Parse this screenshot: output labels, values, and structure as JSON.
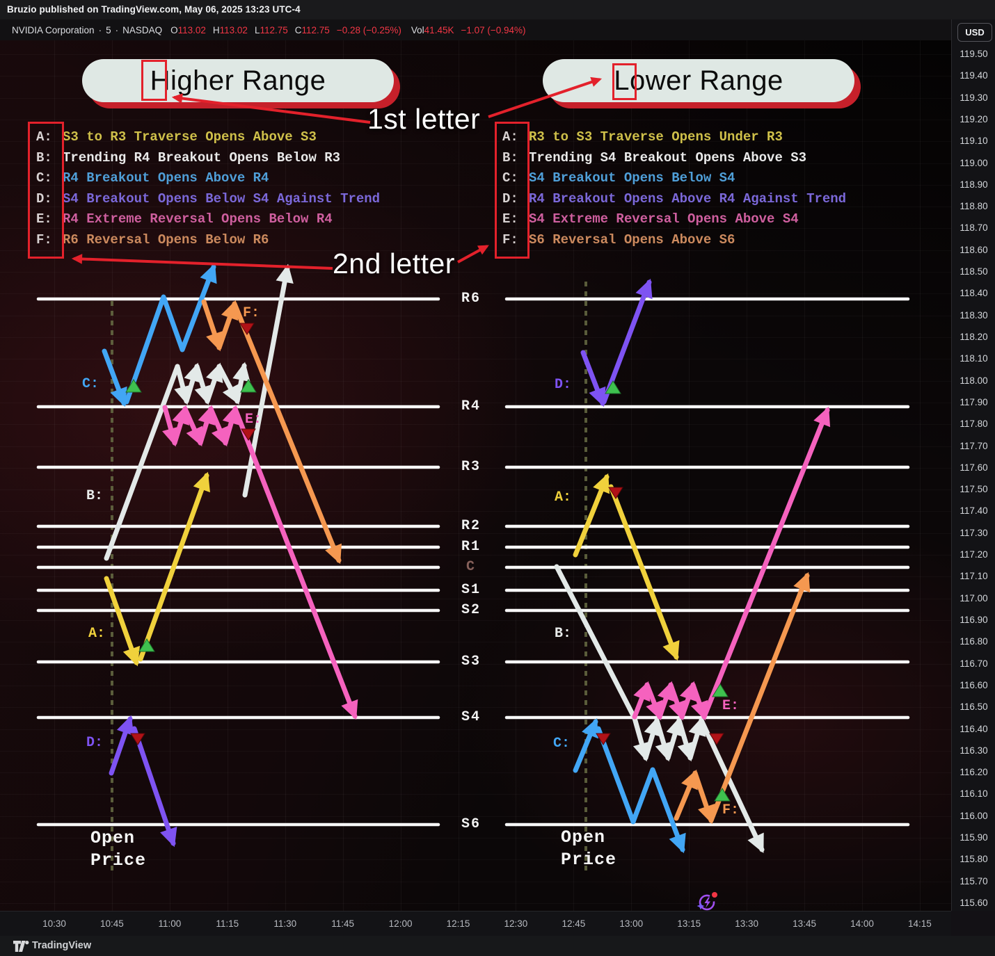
{
  "topbar": {
    "publish_text": "Bruzio published on TradingView.com, May 06, 2025 13:23 UTC-4"
  },
  "header": {
    "title": "NVIDIA Corporation",
    "separator": "·",
    "interval": "5",
    "exchange": "NASDAQ",
    "ohlc": [
      {
        "label": "O",
        "value": "113.02"
      },
      {
        "label": "H",
        "value": "113.02"
      },
      {
        "label": "L",
        "value": "112.75"
      },
      {
        "label": "C",
        "value": "112.75"
      }
    ],
    "change": "−0.28 (−0.25%)",
    "volume_label": "Vol",
    "volume_value": "41.45K",
    "volume_change": "−1.07 (−0.94%)",
    "currency_button": "USD"
  },
  "buttons": {
    "higher_range": "Higher Range",
    "lower_range": "Lower Range"
  },
  "annotations": {
    "first_letter": "1st letter",
    "second_letter": "2nd letter"
  },
  "legend_left": {
    "rows": [
      {
        "letter": "A:",
        "text": "S3 to R3 Traverse Opens Above S3",
        "color": "#cfc04a"
      },
      {
        "letter": "B:",
        "text": "Trending R4 Breakout Opens Below R3",
        "color": "#e9e9e9"
      },
      {
        "letter": "C:",
        "text": "R4 Breakout Opens Above R4",
        "color": "#4f9fd8"
      },
      {
        "letter": "D:",
        "text": "S4 Breakout Opens Below S4 Against Trend",
        "color": "#7b68d9"
      },
      {
        "letter": "E:",
        "text": "R4 Extreme Reversal Opens Below R4",
        "color": "#cf5f9f"
      },
      {
        "letter": "F:",
        "text": "R6 Reversal Opens Below R6",
        "color": "#cc8a5e"
      }
    ]
  },
  "legend_right": {
    "rows": [
      {
        "letter": "A:",
        "text": "R3 to S3 Traverse Opens Under R3",
        "color": "#cfc04a"
      },
      {
        "letter": "B:",
        "text": "Trending S4 Breakout Opens Above S3",
        "color": "#e9e9e9"
      },
      {
        "letter": "C:",
        "text": "S4 Breakout Opens Below S4",
        "color": "#4f9fd8"
      },
      {
        "letter": "D:",
        "text": "R4 Breakout Opens Above R4 Against Trend",
        "color": "#7b68d9"
      },
      {
        "letter": "E:",
        "text": "S4 Extreme Reversal Opens Above S4",
        "color": "#cf5f9f"
      },
      {
        "letter": "F:",
        "text": "S6 Reversal Opens Above S6",
        "color": "#cc8a5e"
      }
    ]
  },
  "levels": {
    "labels": [
      "R6",
      "R4",
      "R3",
      "R2",
      "R1",
      "C",
      "S1",
      "S2",
      "S3",
      "S4",
      "S6"
    ]
  },
  "chart_letters_left": [
    {
      "text": "C:",
      "color": "#42a6f5"
    },
    {
      "text": "B:",
      "color": "#e9eceb"
    },
    {
      "text": "A:",
      "color": "#f0d13c"
    },
    {
      "text": "D:",
      "color": "#7e53f2"
    },
    {
      "text": "F:",
      "color": "#f59850"
    },
    {
      "text": "E:",
      "color": "#f562be"
    }
  ],
  "chart_letters_right": [
    {
      "text": "D:",
      "color": "#7e53f2"
    },
    {
      "text": "A:",
      "color": "#f0d13c"
    },
    {
      "text": "B:",
      "color": "#e9eceb"
    },
    {
      "text": "C:",
      "color": "#42a6f5"
    },
    {
      "text": "E:",
      "color": "#f562be"
    },
    {
      "text": "F:",
      "color": "#f59850"
    }
  ],
  "open_price": {
    "line1": "Open",
    "line2": "Price"
  },
  "price_axis": {
    "labels": [
      "119.50",
      "119.40",
      "119.30",
      "119.20",
      "119.10",
      "119.00",
      "118.90",
      "118.80",
      "118.70",
      "118.60",
      "118.50",
      "118.40",
      "118.30",
      "118.20",
      "118.10",
      "118.00",
      "117.90",
      "117.80",
      "117.70",
      "117.60",
      "117.50",
      "117.40",
      "117.30",
      "117.20",
      "117.10",
      "117.00",
      "116.90",
      "116.80",
      "116.70",
      "116.60",
      "116.50",
      "116.40",
      "116.30",
      "116.20",
      "116.10",
      "116.00",
      "115.90",
      "115.80",
      "115.70",
      "115.60"
    ]
  },
  "time_axis": {
    "labels": [
      "10:30",
      "10:45",
      "11:00",
      "11:15",
      "11:30",
      "11:45",
      "12:00",
      "12:15",
      "12:30",
      "12:45",
      "13:00",
      "13:15",
      "13:30",
      "13:45",
      "14:00",
      "14:15"
    ]
  },
  "footer": {
    "brand": "TradingView"
  },
  "colors": {
    "background": "#0b0708",
    "panel": "#131316",
    "accent_red": "#e3212b",
    "ohlc_red": "#f23645",
    "level_line": "#f7f7f7",
    "arrow_blue": "#42a6f5",
    "arrow_white": "#e3e9e8",
    "arrow_pink": "#f562be",
    "arrow_orange": "#f59850",
    "arrow_yellow": "#f0d13c",
    "arrow_purple": "#7e53f2",
    "marker_green": "#3fc14f",
    "marker_red": "#b01217",
    "pill_bg": "#dfe8e4"
  }
}
